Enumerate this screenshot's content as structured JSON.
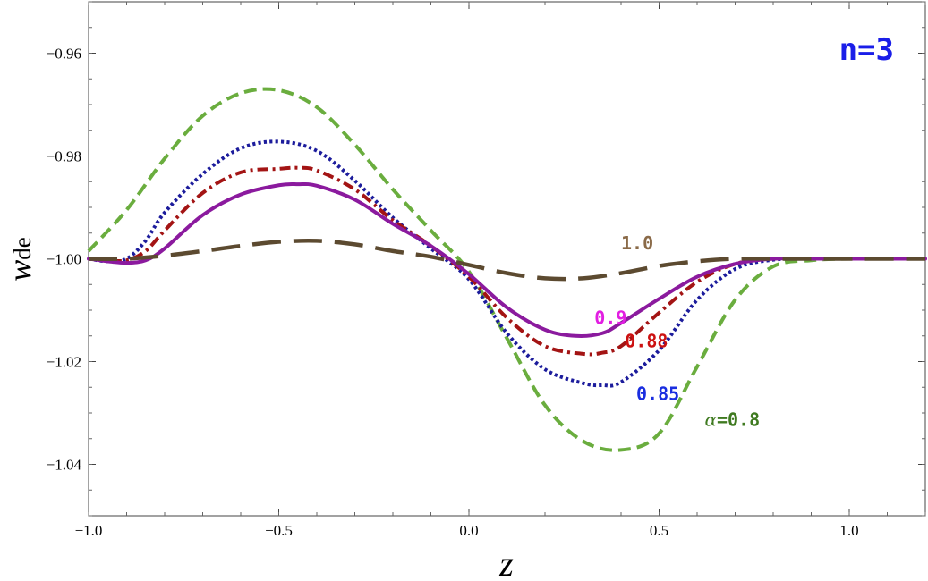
{
  "chart_data": {
    "type": "line",
    "title": "",
    "annotation": "n=3",
    "xlabel": "z",
    "ylabel": "w",
    "ylabel_sub": "de",
    "xlim": [
      -1.0,
      1.2
    ],
    "ylim": [
      -1.05,
      -0.95
    ],
    "xticks": [
      -1.0,
      -0.5,
      0.0,
      0.5,
      1.0
    ],
    "xtick_labels": [
      "−1.0",
      "−0.5",
      "0.0",
      "0.5",
      "1.0"
    ],
    "yticks": [
      -0.96,
      -0.98,
      -1.0,
      -1.02,
      -1.04
    ],
    "ytick_labels": [
      "−0.96",
      "−0.98",
      "−1.00",
      "−1.02",
      "−1.04"
    ],
    "grid": false,
    "series": [
      {
        "name": "alpha=0.8",
        "label_prefix": "α=",
        "label": "0.8",
        "color": "#6aad3e",
        "label_color": "#3f7a20",
        "style": "dashed",
        "x": [
          -1.0,
          -0.9,
          -0.8,
          -0.7,
          -0.6,
          -0.5,
          -0.4,
          -0.3,
          -0.2,
          -0.1,
          0.0,
          0.1,
          0.2,
          0.3,
          0.4,
          0.5,
          0.6,
          0.7,
          0.8,
          0.9,
          1.0,
          1.1,
          1.2
        ],
        "y": [
          -0.9985,
          -0.9905,
          -0.9805,
          -0.9722,
          -0.9678,
          -0.9672,
          -0.9705,
          -0.9778,
          -0.9865,
          -0.9945,
          -1.0025,
          -1.0155,
          -1.0285,
          -1.0355,
          -1.0372,
          -1.034,
          -1.021,
          -1.008,
          -1.0015,
          -1.0003,
          -1.0,
          -1.0,
          -1.0
        ]
      },
      {
        "name": "alpha=0.85",
        "label": "0.85",
        "color": "#1c1c9c",
        "label_color": "#1a2ee0",
        "style": "dotted",
        "x": [
          -1.0,
          -0.95,
          -0.9,
          -0.85,
          -0.8,
          -0.7,
          -0.6,
          -0.5,
          -0.4,
          -0.3,
          -0.2,
          -0.1,
          0.0,
          0.1,
          0.2,
          0.3,
          0.35,
          0.4,
          0.5,
          0.6,
          0.7,
          0.8,
          0.9,
          1.0,
          1.2
        ],
        "y": [
          -1.0,
          -1.0005,
          -1.0,
          -0.9965,
          -0.991,
          -0.9835,
          -0.9785,
          -0.9772,
          -0.979,
          -0.9848,
          -0.992,
          -0.998,
          -1.004,
          -1.0145,
          -1.0215,
          -1.0242,
          -1.0246,
          -1.024,
          -1.0178,
          -1.008,
          -1.002,
          -1.0002,
          -1.0,
          -1.0,
          -1.0
        ]
      },
      {
        "name": "alpha=0.88",
        "label": "0.88",
        "color": "#a31414",
        "label_color": "#cc1111",
        "style": "dashdot",
        "x": [
          -1.0,
          -0.95,
          -0.9,
          -0.85,
          -0.8,
          -0.7,
          -0.6,
          -0.5,
          -0.45,
          -0.4,
          -0.3,
          -0.2,
          -0.1,
          0.0,
          0.1,
          0.2,
          0.3,
          0.35,
          0.4,
          0.5,
          0.6,
          0.7,
          0.8,
          0.9,
          1.0,
          1.2
        ],
        "y": [
          -1.0,
          -1.0003,
          -1.0003,
          -0.9985,
          -0.9945,
          -0.9872,
          -0.9832,
          -0.9825,
          -0.9823,
          -0.9828,
          -0.9865,
          -0.9925,
          -0.9975,
          -1.0035,
          -1.0115,
          -1.017,
          -1.0185,
          -1.0183,
          -1.017,
          -1.0105,
          -1.0045,
          -1.001,
          -1.0,
          -1.0,
          -1.0,
          -1.0
        ]
      },
      {
        "name": "alpha=0.9",
        "label": "0.9",
        "color": "#8b1a9e",
        "label_color": "#e21ee2",
        "style": "solid",
        "x": [
          -1.0,
          -0.95,
          -0.9,
          -0.85,
          -0.8,
          -0.7,
          -0.6,
          -0.5,
          -0.45,
          -0.4,
          -0.3,
          -0.2,
          -0.1,
          0.0,
          0.1,
          0.2,
          0.28,
          0.35,
          0.4,
          0.5,
          0.6,
          0.7,
          0.8,
          0.9,
          1.0,
          1.2
        ],
        "y": [
          -1.0,
          -1.0005,
          -1.0008,
          -1.0003,
          -0.998,
          -0.9915,
          -0.9875,
          -0.9857,
          -0.9855,
          -0.9858,
          -0.9885,
          -0.9932,
          -0.9975,
          -1.003,
          -1.0095,
          -1.0138,
          -1.015,
          -1.0145,
          -1.0125,
          -1.0078,
          -1.0035,
          -1.001,
          -1.0,
          -1.0,
          -1.0,
          -1.0
        ]
      },
      {
        "name": "alpha=1.0",
        "label": "1.0",
        "color": "#5c4a30",
        "label_color": "#8a6a48",
        "style": "longdash",
        "x": [
          -1.0,
          -0.9,
          -0.8,
          -0.7,
          -0.6,
          -0.5,
          -0.4,
          -0.3,
          -0.2,
          -0.1,
          0.0,
          0.1,
          0.2,
          0.3,
          0.4,
          0.5,
          0.6,
          0.7,
          0.8,
          0.9,
          1.0,
          1.2
        ],
        "y": [
          -1.0,
          -1.0,
          -0.9994,
          -0.9985,
          -0.9975,
          -0.9967,
          -0.9965,
          -0.9972,
          -0.9985,
          -0.9996,
          -1.0012,
          -1.0028,
          -1.0038,
          -1.0038,
          -1.0028,
          -1.0014,
          -1.0005,
          -1.0,
          -1.0,
          -1.0,
          -1.0,
          -1.0
        ]
      }
    ],
    "label_positions": [
      {
        "series": "alpha=0.8",
        "x": 0.62,
        "y": -1.0325
      },
      {
        "series": "alpha=0.85",
        "x": 0.44,
        "y": -1.0275
      },
      {
        "series": "alpha=0.88",
        "x": 0.41,
        "y": -1.0172
      },
      {
        "series": "alpha=0.9",
        "x": 0.33,
        "y": -1.0127
      },
      {
        "series": "alpha=1.0",
        "x": 0.4,
        "y": -0.9982
      }
    ]
  }
}
